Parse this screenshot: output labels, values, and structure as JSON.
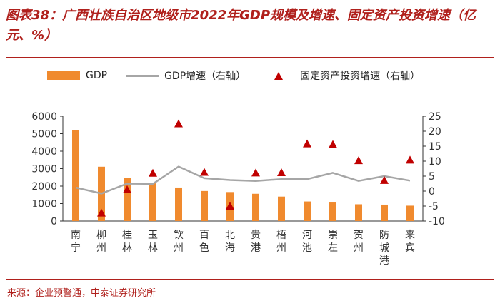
{
  "title": "图表38：广西壮族自治区地级市2022年GDP规模及增速、固定资产投资增速（亿元、%）",
  "legend": {
    "gdp": "GDP",
    "gdp_growth": "GDP增速（右轴）",
    "fai_growth": "固定资产投资增速（右轴）"
  },
  "source": "来源：企业预警通，中泰证券研究所",
  "colors": {
    "title": "#b0201c",
    "bar": "#f08a2e",
    "line": "#a6a6a6",
    "marker": "#c00000"
  },
  "chart_data": {
    "type": "bar",
    "categories": [
      "南宁",
      "柳州",
      "桂林",
      "玉林",
      "钦州",
      "百色",
      "北海",
      "贵港",
      "梧州",
      "河池",
      "崇左",
      "贺州",
      "防城港",
      "来宾"
    ],
    "series": [
      {
        "name": "GDP",
        "type": "bar",
        "axis": "left",
        "values": [
          5220,
          3110,
          2450,
          2160,
          1920,
          1720,
          1660,
          1560,
          1400,
          1120,
          1060,
          960,
          940,
          880
        ]
      },
      {
        "name": "GDP增速（右轴）",
        "type": "line",
        "axis": "right",
        "values": [
          1.2,
          -0.8,
          2.5,
          2.4,
          8.2,
          4.3,
          3.7,
          3.4,
          4.0,
          4.0,
          6.1,
          3.4,
          5.0,
          3.5
        ]
      },
      {
        "name": "固定资产投资增速（右轴）",
        "type": "scatter",
        "axis": "right",
        "values": [
          null,
          -7.3,
          0.5,
          6.0,
          22.5,
          6.3,
          -5.0,
          6.1,
          6.2,
          15.8,
          15.6,
          10.2,
          3.6,
          10.4
        ]
      }
    ],
    "y_left": {
      "min": 0,
      "max": 6000,
      "ticks": [
        "0",
        "1000",
        "2000",
        "3000",
        "4000",
        "5000",
        "6000"
      ]
    },
    "y_right": {
      "min": -10,
      "max": 25,
      "ticks": [
        "-10",
        "-5",
        "0",
        "5",
        "10",
        "15",
        "20",
        "25"
      ]
    },
    "grid": false
  }
}
